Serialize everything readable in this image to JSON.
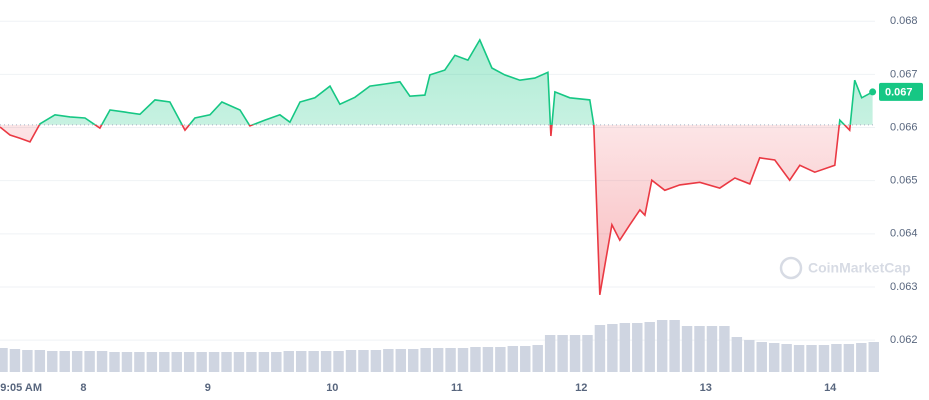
{
  "chart_data": {
    "type": "line",
    "x": [
      7.33,
      7.41,
      7.491,
      7.571,
      7.651,
      7.772,
      7.892,
      8.013,
      8.133,
      8.214,
      8.334,
      8.454,
      8.575,
      8.695,
      8.816,
      8.896,
      9.017,
      9.113,
      9.258,
      9.338,
      9.458,
      9.579,
      9.659,
      9.74,
      9.86,
      9.981,
      10.061,
      10.181,
      10.302,
      10.422,
      10.543,
      10.623,
      10.744,
      10.784,
      10.904,
      10.985,
      11.089,
      11.185,
      11.282,
      11.386,
      11.507,
      11.627,
      11.732,
      11.756,
      11.788,
      11.908,
      12.069,
      12.101,
      12.149,
      12.197,
      12.246,
      12.31,
      12.39,
      12.471,
      12.511,
      12.567,
      12.671,
      12.792,
      12.952,
      13.113,
      13.234,
      13.354,
      13.434,
      13.555,
      13.675,
      13.756,
      13.876,
      14.037,
      14.077,
      14.157,
      14.197,
      14.253,
      14.341
    ],
    "values": [
      0.06601,
      0.06586,
      0.0658,
      0.06573,
      0.06607,
      0.06624,
      0.0662,
      0.06618,
      0.06599,
      0.06633,
      0.06629,
      0.06625,
      0.06652,
      0.06648,
      0.06595,
      0.06618,
      0.06624,
      0.06648,
      0.06633,
      0.06603,
      0.06614,
      0.06624,
      0.0661,
      0.06648,
      0.06656,
      0.06678,
      0.06644,
      0.06657,
      0.06678,
      0.06682,
      0.06686,
      0.06659,
      0.06661,
      0.06699,
      0.06708,
      0.06736,
      0.06727,
      0.06765,
      0.06712,
      0.06699,
      0.06689,
      0.06693,
      0.06704,
      0.06584,
      0.06667,
      0.06656,
      0.06652,
      0.06605,
      0.06285,
      0.06351,
      0.06417,
      0.06388,
      0.06417,
      0.06445,
      0.06435,
      0.06501,
      0.06482,
      0.06492,
      0.06497,
      0.06486,
      0.06505,
      0.06494,
      0.06543,
      0.06539,
      0.06501,
      0.06529,
      0.06516,
      0.06529,
      0.06614,
      0.06595,
      0.06689,
      0.06656,
      0.06667
    ],
    "up_color": "#16c784",
    "down_color": "#ea3943",
    "baseline": 0.06605,
    "last_value_label": "0.067",
    "xlim": [
      7.33,
      14.36
    ],
    "xticks": [
      {
        "value": 7.5,
        "label": "9:05 AM"
      },
      8,
      9,
      10,
      11,
      12,
      13,
      14
    ],
    "ylim": [
      0.0614,
      0.0684
    ],
    "yticks": [
      0.062,
      0.063,
      0.064,
      0.065,
      0.066,
      0.067,
      0.068
    ],
    "grid": true,
    "watermark": "CoinMarketCap",
    "volume": {
      "color": "#cfd5e1",
      "x": [
        7.35,
        7.45,
        7.55,
        7.65,
        7.75,
        7.85,
        7.95,
        8.05,
        8.15,
        8.25,
        8.35,
        8.45,
        8.55,
        8.65,
        8.75,
        8.85,
        8.95,
        9.05,
        9.15,
        9.25,
        9.35,
        9.45,
        9.55,
        9.65,
        9.75,
        9.85,
        9.95,
        10.05,
        10.15,
        10.25,
        10.35,
        10.45,
        10.55,
        10.65,
        10.75,
        10.85,
        10.95,
        11.05,
        11.15,
        11.25,
        11.35,
        11.45,
        11.55,
        11.65,
        11.75,
        11.85,
        11.95,
        12.05,
        12.15,
        12.25,
        12.35,
        12.45,
        12.55,
        12.65,
        12.75,
        12.85,
        12.95,
        13.05,
        13.15,
        13.25,
        13.35,
        13.45,
        13.55,
        13.65,
        13.75,
        13.85,
        13.95,
        14.05,
        14.15,
        14.25,
        14.35
      ],
      "values": [
        24,
        23,
        22,
        22,
        21,
        21,
        21,
        21,
        21,
        20,
        20,
        20,
        20,
        20,
        20,
        20,
        20,
        20,
        20,
        20,
        20,
        20,
        20,
        21,
        21,
        21,
        21,
        21,
        22,
        22,
        22,
        23,
        23,
        23,
        24,
        24,
        24,
        24,
        25,
        25,
        25,
        26,
        26,
        27,
        37,
        37,
        37,
        37,
        47,
        48,
        49,
        49,
        50,
        52,
        52,
        46,
        46,
        46,
        46,
        35,
        32,
        30,
        29,
        28,
        27,
        27,
        27,
        28,
        28,
        29,
        30
      ]
    }
  }
}
